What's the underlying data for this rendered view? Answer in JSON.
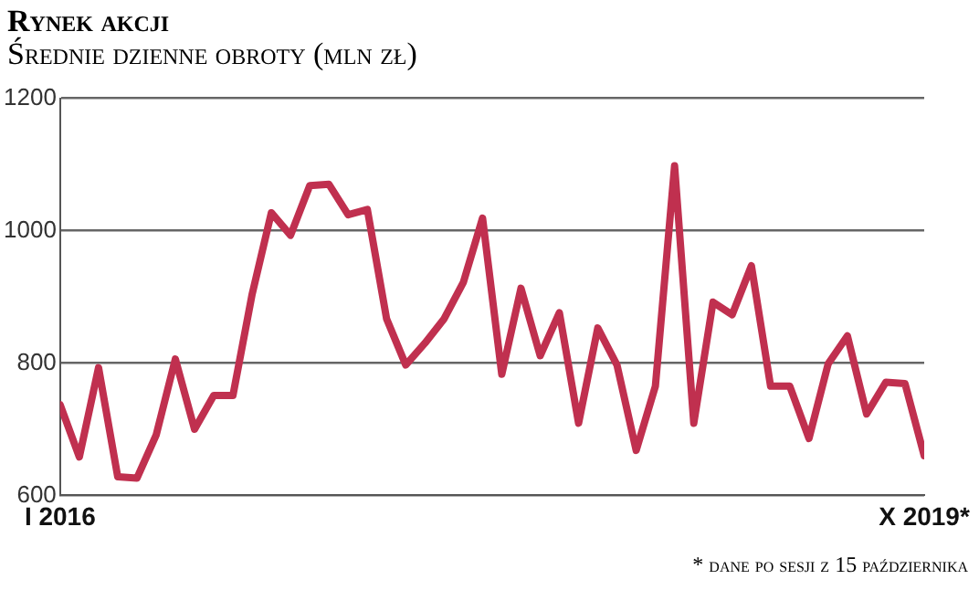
{
  "chart_data": {
    "type": "line",
    "title": "Rynek akcji",
    "subtitle": "Średnie dzienne obroty (mln zł)",
    "x": [
      "2016-01",
      "2016-02",
      "2016-03",
      "2016-04",
      "2016-05",
      "2016-06",
      "2016-07",
      "2016-08",
      "2016-09",
      "2016-10",
      "2016-11",
      "2016-12",
      "2017-01",
      "2017-02",
      "2017-03",
      "2017-04",
      "2017-05",
      "2017-06",
      "2017-07",
      "2017-08",
      "2017-09",
      "2017-10",
      "2017-11",
      "2017-12",
      "2018-01",
      "2018-02",
      "2018-03",
      "2018-04",
      "2018-05",
      "2018-06",
      "2018-07",
      "2018-08",
      "2018-09",
      "2018-10",
      "2018-11",
      "2018-12",
      "2019-01",
      "2019-02",
      "2019-03",
      "2019-04",
      "2019-05",
      "2019-06",
      "2019-07",
      "2019-08",
      "2019-09",
      "2019-10"
    ],
    "values": [
      737,
      658,
      793,
      628,
      626,
      691,
      806,
      700,
      751,
      751,
      904,
      1027,
      993,
      1068,
      1070,
      1024,
      1032,
      867,
      797,
      830,
      867,
      922,
      1019,
      783,
      913,
      811,
      876,
      709,
      853,
      797,
      668,
      765,
      1098,
      709,
      892,
      873,
      947,
      765,
      765,
      686,
      799,
      841,
      723,
      771,
      769,
      660
    ],
    "color": "#c0304f",
    "xlim": [
      "2016-01",
      "2019-10"
    ],
    "xticks": [
      {
        "value": "2016-01",
        "label": "I 2016"
      },
      {
        "value": "2019-10",
        "label": "X 2019*"
      }
    ],
    "ylim": [
      600,
      1200
    ],
    "yticks": [
      600,
      800,
      {
        "value": 1000,
        "label": "1000"
      },
      {
        "value": 1200,
        "label": "1200"
      }
    ],
    "grid": "y",
    "marker": "none",
    "line_style": "solid",
    "annotations": [
      "* dane po sesji z 15 października"
    ]
  }
}
